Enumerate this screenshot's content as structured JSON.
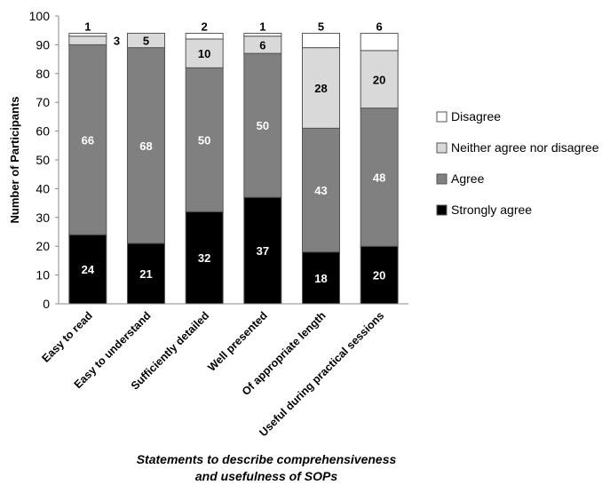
{
  "chart_data": {
    "type": "bar",
    "stacked": true,
    "categories": [
      "Easy to read",
      "Easy to understand",
      "Sufficiently detailed",
      "Well presented",
      "Of appropriate length",
      "Useful during practical sessions"
    ],
    "series": [
      {
        "name": "Strongly agree",
        "color": "#000000",
        "label_color": "#ffffff",
        "values": [
          24,
          21,
          32,
          37,
          18,
          20
        ]
      },
      {
        "name": "Agree",
        "color": "#808080",
        "label_color": "#ffffff",
        "values": [
          66,
          68,
          50,
          50,
          43,
          48
        ]
      },
      {
        "name": "Neither agree nor disagree",
        "color": "#d9d9d9",
        "label_color": "#000000",
        "values": [
          3,
          5,
          10,
          6,
          28,
          20
        ]
      },
      {
        "name": "Disagree",
        "color": "#ffffff",
        "label_color": "#000000",
        "values": [
          1,
          0,
          2,
          1,
          5,
          6
        ]
      }
    ],
    "ylabel": "Number of Participants",
    "xlabel_lines": [
      "Statements to describe comprehensiveness",
      "and usefulness of SOPs"
    ],
    "ylim": [
      0,
      100
    ],
    "yticks": [
      0,
      10,
      20,
      30,
      40,
      50,
      60,
      70,
      80,
      90,
      100
    ],
    "grid": false,
    "legend_position": "right"
  }
}
